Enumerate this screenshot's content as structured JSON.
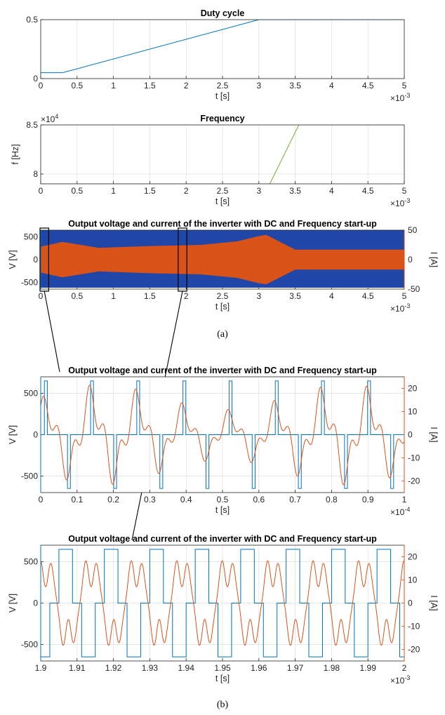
{
  "captions": {
    "a": "(a)",
    "b": "(b)"
  },
  "chart_data": [
    {
      "id": "duty",
      "type": "line",
      "title": "Duty cycle",
      "xlabel": "t [s]",
      "ylabel": "",
      "x_exponent": "×10",
      "x_exponent_power": "-3",
      "xlim": [
        0,
        0.005
      ],
      "ylim": [
        0,
        0.5
      ],
      "xticks": [
        "0",
        "0.5",
        "1",
        "1.5",
        "2",
        "2.5",
        "3",
        "3.5",
        "4",
        "4.5",
        "5"
      ],
      "yticks": [
        "0",
        "0.5"
      ],
      "grid": true,
      "series": [
        {
          "color": "#0072BD",
          "x": [
            0,
            0.0003,
            0.003,
            0.005
          ],
          "y": [
            0.05,
            0.05,
            0.5,
            0.5
          ]
        }
      ]
    },
    {
      "id": "freq",
      "type": "line",
      "title": "Frequency",
      "xlabel": "t [s]",
      "ylabel": "f [Hz]",
      "x_exponent": "×10",
      "x_exponent_power": "-3",
      "y_exponent": "×10",
      "y_exponent_power": "4",
      "xlim": [
        0,
        0.005
      ],
      "ylim": [
        79000,
        85000
      ],
      "xticks": [
        "0",
        "0.5",
        "1",
        "1.5",
        "2",
        "2.5",
        "3",
        "3.5",
        "4",
        "4.5",
        "5"
      ],
      "yticks": [
        "8",
        "8.5"
      ],
      "grid": true,
      "series": [
        {
          "color": "#77AC30",
          "x": [
            0,
            0.00315,
            0.00355,
            0.005
          ],
          "y": [
            79000,
            79000,
            85000,
            85000
          ]
        }
      ]
    },
    {
      "id": "overview",
      "type": "line",
      "title": "Output voltage and current of the inverter with DC and Frequency start-up",
      "xlabel": "t [s]",
      "ylabel": "V [V]",
      "ylabel_right": "I [A]",
      "x_exponent": "×10",
      "x_exponent_power": "-3",
      "xlim": [
        0,
        0.005
      ],
      "ylim": [
        -650,
        650
      ],
      "ylim_right": [
        -50,
        50
      ],
      "xticks": [
        "0",
        "0.5",
        "1",
        "1.5",
        "2",
        "2.5",
        "3",
        "3.5",
        "4",
        "4.5",
        "5"
      ],
      "yticks": [
        "-500",
        "0",
        "500"
      ],
      "yticks_right": [
        "-50",
        "0",
        "50"
      ],
      "grid": true,
      "zoom_boxes": [
        [
          0,
          0.0001
        ],
        [
          0.0019,
          0.002
        ]
      ],
      "series": [
        {
          "name": "V",
          "axis": "left",
          "color": "#2046A8",
          "envelope_x": [
            0,
            0.005
          ],
          "envelope_hi": [
            650,
            650
          ],
          "envelope_lo": [
            -620,
            -620
          ]
        },
        {
          "name": "I",
          "axis": "right",
          "color": "#D95319",
          "envelope_x": [
            0,
            0.0003,
            0.0008,
            0.0015,
            0.0022,
            0.0027,
            0.003,
            0.0031,
            0.0035,
            0.005
          ],
          "envelope_hi": [
            22,
            30,
            20,
            23,
            25,
            31,
            40,
            42,
            17,
            17
          ],
          "envelope_lo": [
            -22,
            -30,
            -20,
            -23,
            -25,
            -31,
            -40,
            -42,
            -17,
            -17
          ]
        }
      ]
    },
    {
      "id": "zoom1",
      "type": "line",
      "title": "Output voltage and current of the inverter with DC and Frequency start-up",
      "xlabel": "t [s]",
      "ylabel": "V [V]",
      "ylabel_right": "I [A]",
      "x_exponent": "×10",
      "x_exponent_power": "-4",
      "xlim": [
        0,
        0.0001
      ],
      "ylim": [
        -700,
        700
      ],
      "ylim_right": [
        -25,
        25
      ],
      "xticks": [
        "0",
        "0.1",
        "0.2",
        "0.3",
        "0.4",
        "0.5",
        "0.6",
        "0.7",
        "0.8",
        "0.9",
        "1"
      ],
      "yticks": [
        "-500",
        "0",
        "500"
      ],
      "yticks_right": [
        "-20",
        "-10",
        "0",
        "10",
        "20"
      ],
      "grid": true,
      "series": [
        {
          "name": "V",
          "axis": "left",
          "color": "#0072BD",
          "amplitude": 650,
          "period": 1.27e-05,
          "pulse_width": 8e-07
        },
        {
          "name": "I",
          "axis": "right",
          "color": "#D95319",
          "period": 1.27e-05,
          "peak_range": [
            10,
            20
          ]
        }
      ]
    },
    {
      "id": "zoom2",
      "type": "line",
      "title": "Output voltage and current of the inverter with DC and Frequency start-up",
      "xlabel": "t [s]",
      "ylabel": "V [V]",
      "ylabel_right": "I [A]",
      "x_exponent": "×10",
      "x_exponent_power": "-3",
      "xlim": [
        0.0019,
        0.002
      ],
      "ylim": [
        -700,
        700
      ],
      "ylim_right": [
        -25,
        25
      ],
      "xticks": [
        "1.9",
        "1.91",
        "1.92",
        "1.93",
        "1.94",
        "1.95",
        "1.96",
        "1.97",
        "1.98",
        "1.99",
        "2"
      ],
      "yticks": [
        "-500",
        "0",
        "500"
      ],
      "yticks_right": [
        "-20",
        "-10",
        "0",
        "10",
        "20"
      ],
      "grid": true,
      "series": [
        {
          "name": "V",
          "axis": "left",
          "color": "#0072BD",
          "amplitude": 650,
          "period": 1.25e-05,
          "duty": 0.3
        },
        {
          "name": "I",
          "axis": "right",
          "color": "#D95319",
          "period": 1.25e-05,
          "peak": 22
        }
      ]
    }
  ]
}
